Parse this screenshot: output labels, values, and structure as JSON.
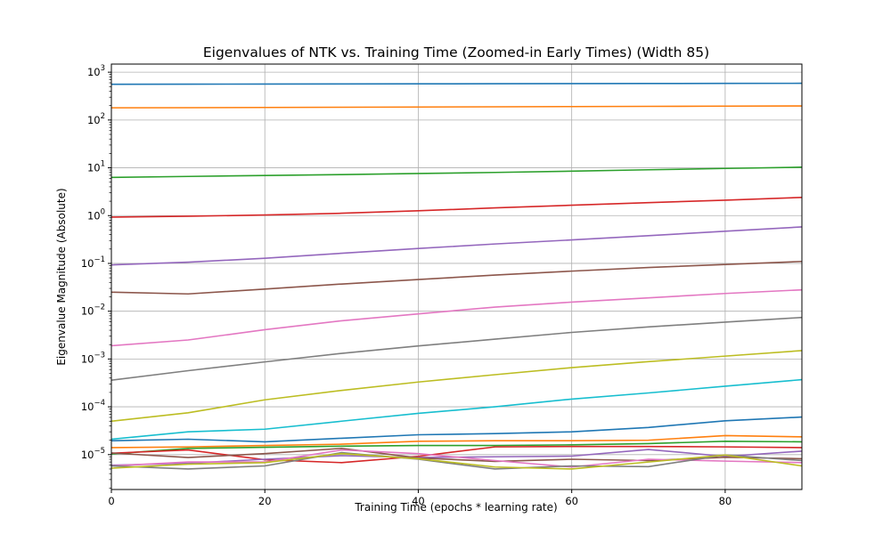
{
  "chart_data": {
    "type": "line",
    "title": "Eigenvalues of NTK vs. Training Time (Zoomed-in Early Times) (Width 85)",
    "xlabel": "Training Time (epochs * learning rate)",
    "ylabel": "Eigenvalue Magnitude (Absolute)",
    "yscale": "log",
    "xlim": [
      0,
      90
    ],
    "ylim_log10": [
      -5.73,
      3.17
    ],
    "grid": true,
    "x": [
      0,
      10,
      20,
      30,
      40,
      50,
      60,
      70,
      80,
      90
    ],
    "xticks": [
      {
        "value": 0,
        "label": "0"
      },
      {
        "value": 20,
        "label": "20"
      },
      {
        "value": 40,
        "label": "40"
      },
      {
        "value": 60,
        "label": "60"
      },
      {
        "value": 80,
        "label": "80"
      }
    ],
    "yticks": [
      {
        "exp": 3,
        "label": "3"
      },
      {
        "exp": 2,
        "label": "2"
      },
      {
        "exp": 1,
        "label": "1"
      },
      {
        "exp": 0,
        "label": "0"
      },
      {
        "exp": -1,
        "label": "−1"
      },
      {
        "exp": -2,
        "label": "−2"
      },
      {
        "exp": -3,
        "label": "−3"
      },
      {
        "exp": -4,
        "label": "−4"
      },
      {
        "exp": -5,
        "label": "−5"
      }
    ],
    "series": [
      {
        "color": "#1f77b4",
        "values": [
          560,
          562,
          565,
          568,
          571,
          574,
          577,
          580,
          583,
          586
        ]
      },
      {
        "color": "#ff7f0e",
        "values": [
          180,
          181,
          183,
          185,
          187,
          189,
          191,
          193,
          195,
          197
        ]
      },
      {
        "color": "#2ca02c",
        "values": [
          6.3,
          6.6,
          6.9,
          7.2,
          7.6,
          8.0,
          8.5,
          9.1,
          9.7,
          10.3
        ]
      },
      {
        "color": "#d62728",
        "values": [
          0.93,
          0.97,
          1.03,
          1.12,
          1.26,
          1.45,
          1.65,
          1.87,
          2.1,
          2.4
        ]
      },
      {
        "color": "#9467bd",
        "values": [
          0.093,
          0.106,
          0.128,
          0.163,
          0.205,
          0.255,
          0.31,
          0.38,
          0.47,
          0.58
        ]
      },
      {
        "color": "#8c564b",
        "values": [
          0.025,
          0.023,
          0.029,
          0.037,
          0.046,
          0.057,
          0.069,
          0.082,
          0.095,
          0.11
        ]
      },
      {
        "color": "#e377c2",
        "values": [
          0.0019,
          0.0025,
          0.0041,
          0.0063,
          0.0088,
          0.0122,
          0.0155,
          0.019,
          0.0235,
          0.028
        ]
      },
      {
        "color": "#7f7f7f",
        "values": [
          0.00036,
          0.00057,
          0.00087,
          0.00131,
          0.00188,
          0.0026,
          0.0036,
          0.0047,
          0.0059,
          0.0074
        ]
      },
      {
        "color": "#bcbd22",
        "values": [
          5e-05,
          7.5e-05,
          0.00014,
          0.00022,
          0.00033,
          0.00047,
          0.00066,
          0.00088,
          0.00115,
          0.0015
        ]
      },
      {
        "color": "#17becf",
        "values": [
          2.1e-05,
          3e-05,
          3.4e-05,
          5e-05,
          7.3e-05,
          0.0001,
          0.000145,
          0.000195,
          0.00027,
          0.00037
        ]
      },
      {
        "color": "#1f77b4",
        "values": [
          1.95e-05,
          2.1e-05,
          1.85e-05,
          2.2e-05,
          2.6e-05,
          2.75e-05,
          3e-05,
          3.7e-05,
          5.1e-05,
          6.1e-05
        ]
      },
      {
        "color": "#ff7f0e",
        "values": [
          1.4e-05,
          1.45e-05,
          1.55e-05,
          1.65e-05,
          1.9e-05,
          1.95e-05,
          1.95e-05,
          2e-05,
          2.5e-05,
          2.35e-05
        ]
      },
      {
        "color": "#2ca02c",
        "values": [
          1.03e-05,
          1.35e-05,
          1.42e-05,
          1.5e-05,
          1.55e-05,
          1.55e-05,
          1.6e-05,
          1.7e-05,
          1.9e-05,
          1.85e-05
        ]
      },
      {
        "color": "#d62728",
        "values": [
          1.07e-05,
          1.25e-05,
          7.8e-06,
          6.8e-06,
          9.2e-06,
          1.45e-05,
          1.48e-05,
          1.48e-05,
          1.45e-05,
          1.4e-05
        ]
      },
      {
        "color": "#9467bd",
        "values": [
          6e-06,
          6.6e-06,
          8e-06,
          9.5e-06,
          8.7e-06,
          9e-06,
          9.3e-06,
          1.28e-05,
          9.2e-06,
          1.18e-05
        ]
      },
      {
        "color": "#8c564b",
        "values": [
          1.08e-05,
          8.7e-06,
          1.05e-05,
          1.35e-05,
          8.5e-06,
          7.2e-06,
          8e-06,
          7.5e-06,
          8.8e-06,
          8.2e-06
        ]
      },
      {
        "color": "#e377c2",
        "values": [
          5.8e-06,
          7e-06,
          7e-06,
          1.25e-05,
          1.05e-05,
          7.5e-06,
          5.5e-06,
          8e-06,
          7.3e-06,
          6.8e-06
        ]
      },
      {
        "color": "#7f7f7f",
        "values": [
          5.8e-06,
          5e-06,
          5.8e-06,
          1.1e-05,
          8e-06,
          5e-06,
          5.8e-06,
          5.6e-06,
          9.8e-06,
          7.5e-06
        ]
      },
      {
        "color": "#bcbd22",
        "values": [
          5.2e-06,
          6.3e-06,
          6.8e-06,
          1.05e-05,
          8.2e-06,
          5.5e-06,
          5e-06,
          7e-06,
          9.8e-06,
          5.8e-06
        ]
      }
    ]
  }
}
